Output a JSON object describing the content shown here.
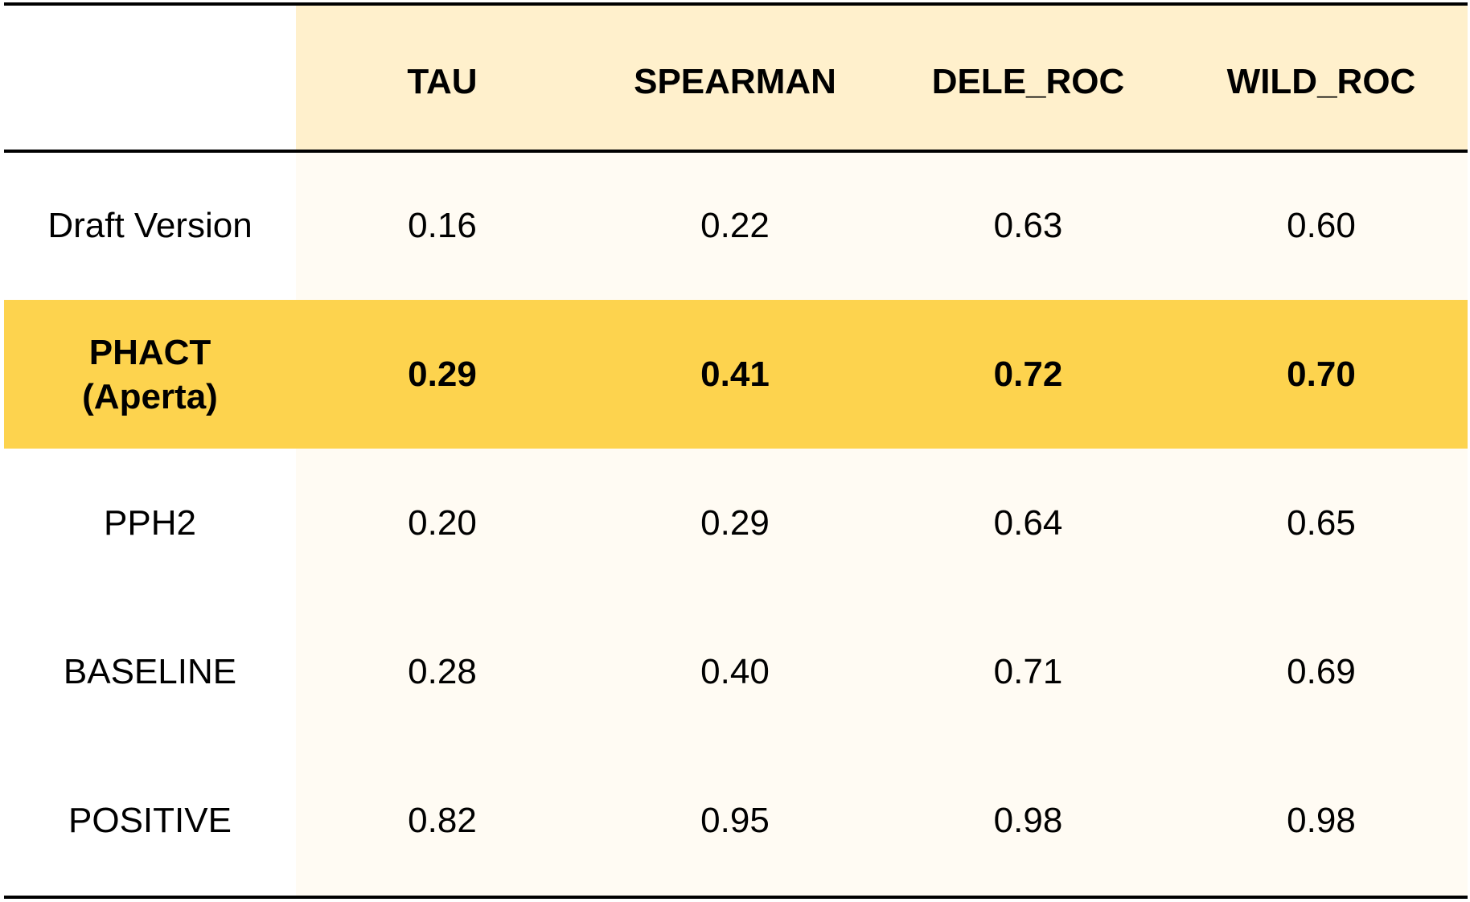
{
  "chart_data": {
    "type": "table",
    "columns": [
      "",
      "TAU",
      "SPEARMAN",
      "DELE_ROC",
      "WILD_ROC"
    ],
    "rows": [
      {
        "label": "Draft Version",
        "values": [
          "0.16",
          "0.22",
          "0.63",
          "0.60"
        ],
        "highlight": false
      },
      {
        "label": "PHACT\n(Aperta)",
        "values": [
          "0.29",
          "0.41",
          "0.72",
          "0.70"
        ],
        "highlight": true
      },
      {
        "label": "PPH2",
        "values": [
          "0.20",
          "0.29",
          "0.64",
          "0.65"
        ],
        "highlight": false
      },
      {
        "label": "BASELINE",
        "values": [
          "0.28",
          "0.40",
          "0.71",
          "0.69"
        ],
        "highlight": false
      },
      {
        "label": "POSITIVE",
        "values": [
          "0.82",
          "0.95",
          "0.98",
          "0.98"
        ],
        "highlight": false
      }
    ]
  },
  "colors": {
    "header_background": "#fff0cc",
    "data_background": "#fffbf3",
    "highlight_row": "#fdd34e",
    "rule": "#000000"
  }
}
